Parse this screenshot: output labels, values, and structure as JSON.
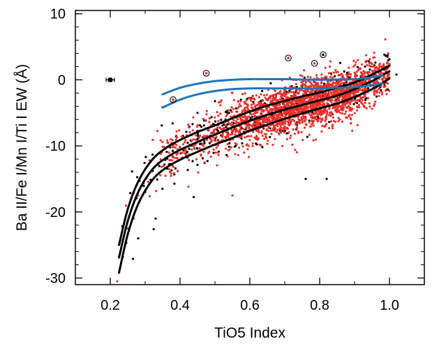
{
  "chart_data": {
    "type": "scatter",
    "xlabel": "TiO5 Index",
    "ylabel": "Ba II/Fe I/Mn I/Ti I EW (Å)",
    "xlim": [
      0.1,
      1.1
    ],
    "ylim": [
      -31,
      10.5
    ],
    "x_ticks": [
      {
        "value": 0.2,
        "label": "0.2"
      },
      {
        "value": 0.4,
        "label": "0.4"
      },
      {
        "value": 0.6,
        "label": "0.6"
      },
      {
        "value": 0.8,
        "label": "0.8"
      },
      {
        "value": 1.0,
        "label": "1.0"
      }
    ],
    "y_ticks": [
      {
        "value": 10,
        "label": "10"
      },
      {
        "value": 0,
        "label": "0"
      },
      {
        "value": -10,
        "label": "-10"
      },
      {
        "value": -20,
        "label": "-20"
      },
      {
        "value": -30,
        "label": "-30"
      }
    ],
    "grid": false,
    "colors": {
      "red_points": "#e8302a",
      "black_points": "#000000",
      "fit_curves": "#000000",
      "blue_curves": "#1f74b8"
    },
    "series": [
      {
        "kind": "fit-curve",
        "color": "#000000",
        "x": [
          0.225,
          0.25,
          0.28,
          0.32,
          0.36,
          0.4,
          0.45,
          0.5,
          0.55,
          0.6,
          0.65,
          0.7,
          0.75,
          0.8,
          0.85,
          0.9,
          0.95,
          0.98,
          1.0
        ],
        "y": [
          -25.0,
          -19.6,
          -15.4,
          -12.1,
          -10.3,
          -9.1,
          -7.9,
          -6.9,
          -5.8,
          -4.8,
          -3.9,
          -3.2,
          -2.5,
          -1.9,
          -1.2,
          -0.4,
          0.8,
          1.6,
          2.1
        ]
      },
      {
        "kind": "fit-curve",
        "color": "#000000",
        "x": [
          0.225,
          0.25,
          0.28,
          0.32,
          0.36,
          0.4,
          0.45,
          0.5,
          0.55,
          0.6,
          0.65,
          0.7,
          0.75,
          0.8,
          0.85,
          0.9,
          0.95,
          0.98,
          1.0
        ],
        "y": [
          -26.9,
          -21.4,
          -17.0,
          -13.6,
          -11.8,
          -10.6,
          -9.4,
          -8.3,
          -7.2,
          -6.2,
          -5.3,
          -4.5,
          -3.8,
          -3.1,
          -2.4,
          -1.4,
          -0.2,
          0.7,
          1.3
        ]
      },
      {
        "kind": "fit-curve",
        "color": "#000000",
        "x": [
          0.225,
          0.25,
          0.28,
          0.32,
          0.36,
          0.4,
          0.45,
          0.5,
          0.55,
          0.6,
          0.65,
          0.7,
          0.75,
          0.8,
          0.85,
          0.9,
          0.95,
          0.98,
          1.0
        ],
        "y": [
          -29.2,
          -23.4,
          -18.8,
          -15.2,
          -13.3,
          -12.1,
          -10.9,
          -9.8,
          -8.8,
          -7.7,
          -6.8,
          -5.9,
          -5.1,
          -4.3,
          -3.6,
          -2.6,
          -1.4,
          -0.5,
          0.2
        ]
      },
      {
        "kind": "reference-curve",
        "color": "#1f74b8",
        "x": [
          0.35,
          0.4,
          0.45,
          0.5,
          0.55,
          0.6,
          0.65,
          0.7,
          0.75,
          0.8,
          0.85,
          0.9,
          0.95,
          0.98
        ],
        "y": [
          -2.2,
          -1.2,
          -0.6,
          -0.2,
          0.0,
          0.1,
          0.1,
          0.1,
          0.05,
          0.0,
          0.05,
          0.1,
          0.4,
          0.7
        ]
      },
      {
        "kind": "reference-curve",
        "color": "#1f74b8",
        "x": [
          0.35,
          0.4,
          0.45,
          0.5,
          0.55,
          0.6,
          0.65,
          0.7,
          0.75,
          0.8,
          0.85,
          0.9,
          0.95,
          0.98
        ],
        "y": [
          -4.2,
          -3.0,
          -2.2,
          -1.7,
          -1.4,
          -1.3,
          -1.3,
          -1.3,
          -1.3,
          -1.3,
          -1.2,
          -1.1,
          -0.8,
          -0.5
        ]
      }
    ],
    "highlighted_points": [
      {
        "x": 0.38,
        "y": -3.0,
        "center": "#e8302a"
      },
      {
        "x": 0.475,
        "y": 1.0,
        "center": "#e8302a"
      },
      {
        "x": 0.71,
        "y": 3.3,
        "center": "#e8302a"
      },
      {
        "x": 0.785,
        "y": 2.5,
        "center": "#e8302a"
      },
      {
        "x": 0.81,
        "y": 3.8,
        "center": "#000000"
      }
    ],
    "error_bar": {
      "x": 0.2,
      "y": 0.0,
      "x_err": 0.012,
      "y_err": 0.35
    },
    "scatter_red": {
      "n": 2200,
      "x_range": [
        0.23,
        1.0
      ],
      "scatter_sigma": 1.8,
      "density_peak_x": 0.78,
      "representative_outliers": [
        {
          "x": 0.22,
          "y": -30.5
        },
        {
          "x": 0.25,
          "y": -22.5
        },
        {
          "x": 0.39,
          "y": -7.8
        },
        {
          "x": 0.47,
          "y": -12.5
        },
        {
          "x": 0.55,
          "y": -17.5
        },
        {
          "x": 0.63,
          "y": -3.5
        },
        {
          "x": 0.77,
          "y": -1.0
        }
      ]
    },
    "scatter_black": {
      "n": 400,
      "x_range": [
        0.23,
        1.0
      ],
      "scatter_sigma": 2.0,
      "representative_outliers": [
        {
          "x": 0.28,
          "y": -24.0
        },
        {
          "x": 0.3,
          "y": -17.0
        },
        {
          "x": 0.33,
          "y": -21.0
        },
        {
          "x": 0.45,
          "y": -5.0
        },
        {
          "x": 0.76,
          "y": -15.0
        },
        {
          "x": 0.82,
          "y": -15.0
        },
        {
          "x": 0.93,
          "y": 2.0
        },
        {
          "x": 1.02,
          "y": 0.8
        }
      ]
    }
  }
}
